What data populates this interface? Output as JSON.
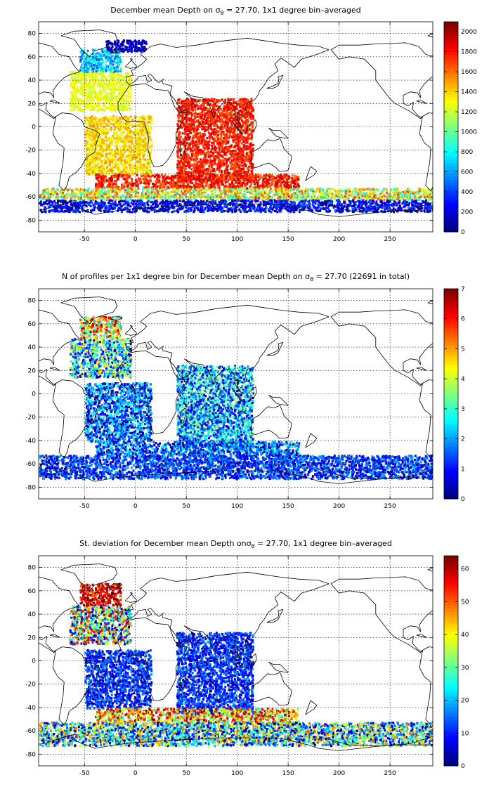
{
  "chart_data": [
    {
      "type": "heatmap",
      "title_parts": [
        "December mean Depth on ",
        "σ",
        "θ",
        " = 27.70, 1x1 degree bin–averaged"
      ],
      "xlim": [
        -95,
        292
      ],
      "ylim": [
        -90,
        90
      ],
      "x_ticks": [
        -50,
        0,
        50,
        100,
        150,
        200,
        250
      ],
      "y_ticks": [
        -80,
        -60,
        -40,
        -20,
        0,
        20,
        40,
        60,
        80
      ],
      "grid": true,
      "colorbar": {
        "min": 0,
        "max": 2100,
        "ticks": [
          0,
          200,
          400,
          600,
          800,
          1000,
          1200,
          1400,
          1600,
          1800,
          2000
        ],
        "colormap": "jet"
      },
      "regions": [
        {
          "lon": [
            -65,
            -5
          ],
          "lat": [
            15,
            48
          ],
          "value": 1270,
          "spread": 120
        },
        {
          "lon": [
            -55,
            -15
          ],
          "lat": [
            48,
            67
          ],
          "value": 650,
          "spread": 250
        },
        {
          "lon": [
            -30,
            10
          ],
          "lat": [
            65,
            75
          ],
          "value": 150,
          "spread": 100
        },
        {
          "lon": [
            -50,
            15
          ],
          "lat": [
            -40,
            10
          ],
          "value": 1380,
          "spread": 180
        },
        {
          "lon": [
            40,
            115
          ],
          "lat": [
            -45,
            25
          ],
          "value": 1780,
          "spread": 150
        },
        {
          "lon": [
            -40,
            160
          ],
          "lat": [
            -52,
            -40
          ],
          "value": 1800,
          "spread": 200
        },
        {
          "lon": [
            -95,
            292
          ],
          "lat": [
            -62,
            -52
          ],
          "value": 1250,
          "spread": 500
        },
        {
          "lon": [
            -95,
            292
          ],
          "lat": [
            -72,
            -62
          ],
          "value": 250,
          "spread": 200
        }
      ]
    },
    {
      "type": "heatmap",
      "title_parts": [
        "N of profiles per 1x1 degree bin for December mean Depth on ",
        "σ",
        "θ",
        " = 27.70 (22691 in total)"
      ],
      "xlim": [
        -95,
        292
      ],
      "ylim": [
        -90,
        90
      ],
      "x_ticks": [
        -50,
        0,
        50,
        100,
        150,
        200,
        250
      ],
      "y_ticks": [
        -80,
        -60,
        -40,
        -20,
        0,
        20,
        40,
        60,
        80
      ],
      "grid": true,
      "colorbar": {
        "min": 0,
        "max": 7,
        "ticks": [
          0,
          1,
          2,
          3,
          4,
          5,
          6,
          7
        ],
        "colormap": "jet"
      },
      "regions": [
        {
          "lon": [
            -65,
            -5
          ],
          "lat": [
            15,
            48
          ],
          "value": 2.5,
          "spread": 2.5
        },
        {
          "lon": [
            -55,
            -15
          ],
          "lat": [
            48,
            67
          ],
          "value": 4.5,
          "spread": 2.5
        },
        {
          "lon": [
            -50,
            15
          ],
          "lat": [
            -40,
            10
          ],
          "value": 1.5,
          "spread": 1.5
        },
        {
          "lon": [
            40,
            115
          ],
          "lat": [
            -45,
            25
          ],
          "value": 2.0,
          "spread": 1.8
        },
        {
          "lon": [
            -40,
            160
          ],
          "lat": [
            -52,
            -40
          ],
          "value": 1.5,
          "spread": 1.5
        },
        {
          "lon": [
            -95,
            292
          ],
          "lat": [
            -72,
            -52
          ],
          "value": 1.2,
          "spread": 1.0
        }
      ]
    },
    {
      "type": "heatmap",
      "title_parts": [
        "St. deviation for December mean Depth on",
        "σ",
        "θ",
        " = 27.70, 1x1 degree bin–averaged"
      ],
      "xlim": [
        -95,
        292
      ],
      "ylim": [
        -90,
        90
      ],
      "x_ticks": [
        -50,
        0,
        50,
        100,
        150,
        200,
        250
      ],
      "y_ticks": [
        -80,
        -60,
        -40,
        -20,
        0,
        20,
        40,
        60,
        80
      ],
      "grid": true,
      "colorbar": {
        "min": 0,
        "max": 64,
        "ticks": [
          0,
          10,
          20,
          30,
          40,
          50,
          60
        ],
        "colormap": "jet"
      },
      "regions": [
        {
          "lon": [
            -65,
            -5
          ],
          "lat": [
            15,
            48
          ],
          "value": 30,
          "spread": 30
        },
        {
          "lon": [
            -55,
            -15
          ],
          "lat": [
            48,
            67
          ],
          "value": 58,
          "spread": 10
        },
        {
          "lon": [
            -50,
            15
          ],
          "lat": [
            -40,
            10
          ],
          "value": 10,
          "spread": 8
        },
        {
          "lon": [
            40,
            115
          ],
          "lat": [
            -45,
            25
          ],
          "value": 10,
          "spread": 8
        },
        {
          "lon": [
            -40,
            160
          ],
          "lat": [
            -52,
            -40
          ],
          "value": 45,
          "spread": 20
        },
        {
          "lon": [
            -95,
            292
          ],
          "lat": [
            -72,
            -52
          ],
          "value": 25,
          "spread": 25
        }
      ]
    }
  ]
}
